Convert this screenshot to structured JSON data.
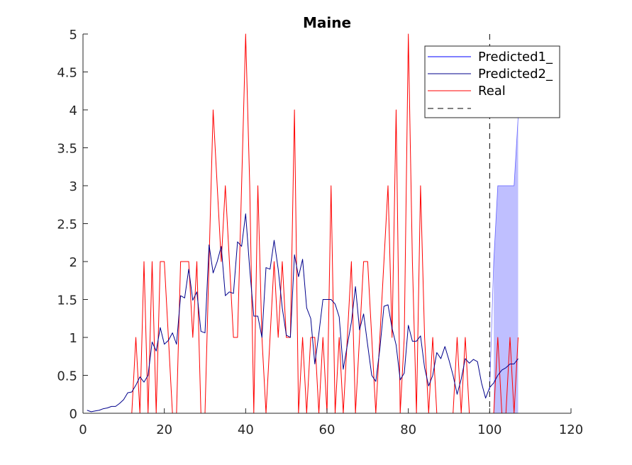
{
  "chart_data": {
    "type": "line",
    "title": "Maine",
    "xlabel": "",
    "ylabel": "",
    "xlim": [
      0,
      120
    ],
    "ylim": [
      0,
      5
    ],
    "xticks": [
      0,
      20,
      40,
      60,
      80,
      100,
      120
    ],
    "yticks": [
      0,
      0.5,
      1,
      1.5,
      2,
      2.5,
      3,
      3.5,
      4,
      4.5,
      5
    ],
    "ytick_labels": [
      "0",
      "0.5",
      "1",
      "1.5",
      "2",
      "2.5",
      "3",
      "3.5",
      "4",
      "4.5",
      "5"
    ],
    "grid": false,
    "legend_position": "top-right",
    "vline_x": 100,
    "series": [
      {
        "name": "Predicted1_",
        "color": "#0000ff",
        "x": [
          100,
          101,
          102,
          103,
          104,
          105,
          106,
          107
        ],
        "y": [
          0.3,
          2.0,
          3.0,
          3.0,
          3.0,
          3.0,
          3.0,
          3.9
        ]
      },
      {
        "name": "Predicted2_",
        "color": "#00008b",
        "x": [
          1,
          2,
          3,
          4,
          5,
          6,
          7,
          8,
          9,
          10,
          11,
          12,
          13,
          14,
          15,
          16,
          17,
          18,
          19,
          20,
          21,
          22,
          23,
          24,
          25,
          26,
          27,
          28,
          29,
          30,
          31,
          32,
          33,
          34,
          35,
          36,
          37,
          38,
          39,
          40,
          41,
          42,
          43,
          44,
          45,
          46,
          47,
          48,
          49,
          50,
          51,
          52,
          53,
          54,
          55,
          56,
          57,
          58,
          59,
          60,
          61,
          62,
          63,
          64,
          65,
          66,
          67,
          68,
          69,
          70,
          71,
          72,
          73,
          74,
          75,
          76,
          77,
          78,
          79,
          80,
          81,
          82,
          83,
          84,
          85,
          86,
          87,
          88,
          89,
          90,
          91,
          92,
          93,
          94,
          95,
          96,
          97,
          98,
          99,
          100,
          101,
          102,
          103,
          104,
          105,
          106,
          107
        ],
        "y": [
          0.04,
          0.02,
          0.03,
          0.04,
          0.06,
          0.07,
          0.09,
          0.09,
          0.13,
          0.18,
          0.27,
          0.28,
          0.37,
          0.48,
          0.41,
          0.5,
          0.94,
          0.82,
          1.13,
          0.91,
          0.96,
          1.06,
          0.91,
          1.55,
          1.52,
          1.9,
          1.49,
          1.6,
          1.08,
          1.06,
          2.22,
          1.85,
          2.0,
          2.2,
          1.55,
          1.6,
          1.58,
          2.26,
          2.2,
          2.63,
          1.9,
          1.28,
          1.28,
          1.0,
          1.92,
          1.9,
          2.28,
          1.9,
          1.39,
          1.03,
          1.0,
          2.09,
          1.8,
          2.03,
          1.39,
          1.25,
          0.65,
          1.05,
          1.5,
          1.5,
          1.5,
          1.44,
          1.27,
          0.58,
          0.9,
          1.2,
          1.67,
          1.1,
          1.31,
          0.9,
          0.5,
          0.42,
          0.85,
          1.41,
          1.43,
          1.12,
          0.9,
          0.44,
          0.53,
          1.16,
          0.95,
          0.95,
          1.02,
          0.6,
          0.36,
          0.5,
          0.8,
          0.72,
          0.88,
          0.7,
          0.5,
          0.25,
          0.45,
          0.72,
          0.66,
          0.71,
          0.68,
          0.4,
          0.2,
          0.34,
          0.4,
          0.5,
          0.57,
          0.6,
          0.65,
          0.65,
          0.72
        ]
      },
      {
        "name": "Real",
        "color": "#ff0000",
        "x": [
          1,
          2,
          3,
          4,
          5,
          6,
          7,
          8,
          9,
          10,
          11,
          12,
          13,
          14,
          15,
          16,
          17,
          18,
          19,
          20,
          21,
          22,
          23,
          24,
          25,
          26,
          27,
          28,
          29,
          30,
          31,
          32,
          33,
          34,
          35,
          36,
          37,
          38,
          39,
          40,
          41,
          42,
          43,
          44,
          45,
          46,
          47,
          48,
          49,
          50,
          51,
          52,
          53,
          54,
          55,
          56,
          57,
          58,
          59,
          60,
          61,
          62,
          63,
          64,
          65,
          66,
          67,
          68,
          69,
          70,
          71,
          72,
          73,
          74,
          75,
          76,
          77,
          78,
          79,
          80,
          81,
          82,
          83,
          84,
          85,
          86,
          87,
          88,
          89,
          90,
          91,
          92,
          93,
          94,
          95,
          96,
          97,
          98,
          99,
          100,
          101,
          102,
          103,
          104,
          105,
          106,
          107
        ],
        "y": [
          0,
          0,
          0,
          0,
          0,
          0,
          0,
          0,
          0,
          0,
          0,
          0,
          1,
          0,
          2,
          0,
          2,
          0,
          2,
          2,
          1,
          0,
          0,
          2,
          2,
          2,
          1,
          2,
          0,
          0,
          2,
          4,
          3,
          2,
          3,
          2,
          1,
          1,
          3,
          5,
          3,
          0,
          3,
          1,
          0,
          1,
          2,
          1,
          2,
          1,
          1,
          4,
          0,
          1,
          0,
          1,
          1,
          0,
          1,
          0,
          3,
          0,
          1,
          0,
          1,
          2,
          0,
          1,
          2,
          2,
          1,
          0,
          1,
          2,
          3,
          1,
          4,
          0,
          1,
          5,
          2,
          0,
          3,
          1,
          0,
          1,
          0,
          0,
          0,
          0,
          0,
          1,
          0,
          1,
          0,
          0,
          0,
          0,
          0,
          0,
          0,
          1,
          0,
          0,
          1,
          0,
          1
        ]
      },
      {
        "name": "",
        "color": "#000000",
        "dashed": true,
        "x": [],
        "y": []
      }
    ],
    "confidence_band": {
      "color": "#0000ff",
      "opacity": 0.25,
      "x": [
        101,
        102,
        103,
        104,
        105,
        106,
        107
      ],
      "upper": [
        2.0,
        3.0,
        3.0,
        3.0,
        3.0,
        3.0,
        3.9
      ],
      "lower": [
        0,
        0,
        0,
        0,
        0,
        0,
        0
      ]
    }
  }
}
